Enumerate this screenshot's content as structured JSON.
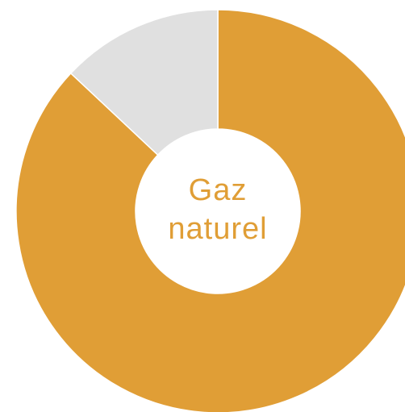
{
  "chart_data": {
    "type": "donut",
    "center_label": "Gaz naturel",
    "values": [
      87,
      13
    ],
    "colors": [
      "#e09e36",
      "#e0e0e0"
    ],
    "label_color": "#e09e36"
  }
}
